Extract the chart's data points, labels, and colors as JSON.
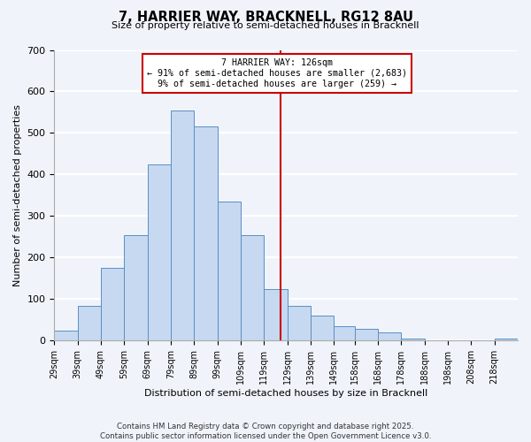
{
  "title": "7, HARRIER WAY, BRACKNELL, RG12 8AU",
  "subtitle": "Size of property relative to semi-detached houses in Bracknell",
  "xlabel": "Distribution of semi-detached houses by size in Bracknell",
  "ylabel": "Number of semi-detached properties",
  "bin_edges": [
    29,
    39,
    49,
    59,
    69,
    79,
    89,
    99,
    109,
    119,
    129,
    139,
    149,
    158,
    168,
    178,
    188,
    198,
    208,
    218,
    228
  ],
  "bar_heights": [
    25,
    85,
    175,
    255,
    425,
    555,
    515,
    335,
    255,
    125,
    85,
    60,
    35,
    28,
    20,
    5,
    2,
    0,
    0,
    5
  ],
  "bar_color": "#c6d9f1",
  "bar_edgecolor": "#5a8fc3",
  "vline_x": 126,
  "vline_color": "#cc0000",
  "annotation_title": "7 HARRIER WAY: 126sqm",
  "annotation_line1": "← 91% of semi-detached houses are smaller (2,683)",
  "annotation_line2": "9% of semi-detached houses are larger (259) →",
  "annotation_box_edgecolor": "#cc0000",
  "ylim": [
    0,
    700
  ],
  "yticks": [
    0,
    100,
    200,
    300,
    400,
    500,
    600,
    700
  ],
  "footnote1": "Contains HM Land Registry data © Crown copyright and database right 2025.",
  "footnote2": "Contains public sector information licensed under the Open Government Licence v3.0.",
  "background_color": "#f0f4fa",
  "grid_color": "#ffffff"
}
